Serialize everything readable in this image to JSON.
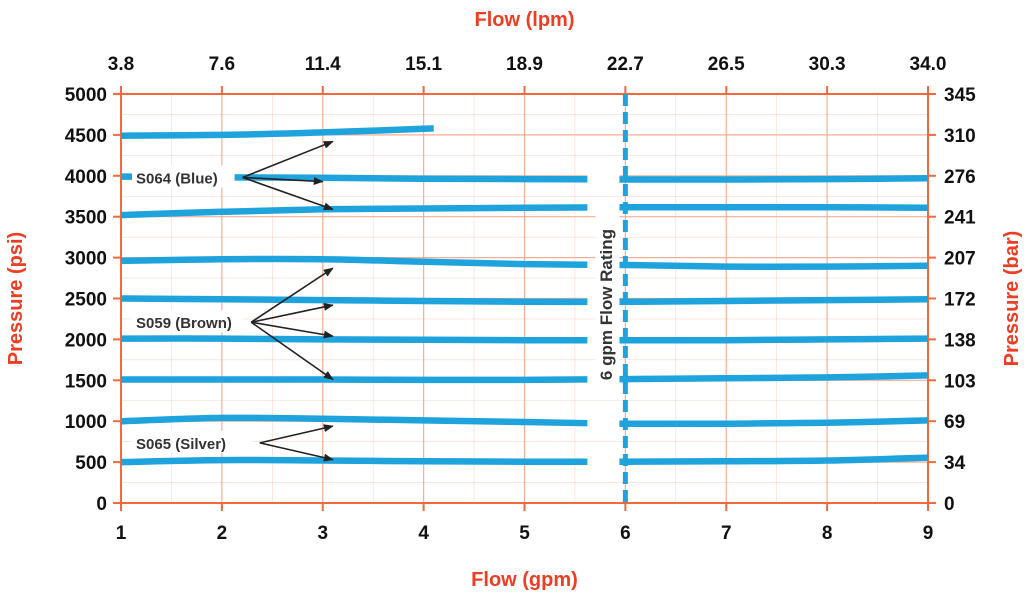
{
  "chart_data": {
    "type": "line",
    "xlabel": "Flow (gpm)",
    "x2label": "Flow (lpm)",
    "ylabel": "Pressure (psi)",
    "y2label": "Pressure (bar)",
    "xlim": [
      1,
      9
    ],
    "ylim": [
      0,
      5000
    ],
    "grid": true,
    "x_ticks": [
      "1",
      "2",
      "3",
      "4",
      "5",
      "6",
      "7",
      "8",
      "9"
    ],
    "x2_ticks": [
      "3.8",
      "7.6",
      "11.4",
      "15.1",
      "18.9",
      "22.7",
      "26.5",
      "30.3",
      "34.0"
    ],
    "y_ticks": [
      "0",
      "500",
      "1000",
      "1500",
      "2000",
      "2500",
      "3000",
      "3500",
      "4000",
      "4500",
      "5000"
    ],
    "y2_ticks": [
      "0",
      "34",
      "69",
      "103",
      "138",
      "172",
      "207",
      "241",
      "276",
      "310",
      "345"
    ],
    "y_tick_values": [
      0,
      500,
      1000,
      1500,
      2000,
      2500,
      3000,
      3500,
      4000,
      4500,
      5000
    ],
    "flow_rating": {
      "x": 6,
      "label": "6 gpm Flow Rating"
    },
    "series": [
      {
        "group": "S064 (Blue)",
        "points": [
          [
            1,
            4490
          ],
          [
            2,
            4500
          ],
          [
            3,
            4530
          ],
          [
            4.1,
            4580
          ]
        ]
      },
      {
        "group": "S064 (Blue)",
        "points": [
          [
            1,
            3990
          ],
          [
            2,
            3980
          ],
          [
            3,
            3975
          ],
          [
            4,
            3965
          ],
          [
            5,
            3960
          ],
          [
            6,
            3955
          ],
          [
            7,
            3955
          ],
          [
            8,
            3960
          ],
          [
            9,
            3970
          ]
        ]
      },
      {
        "group": "S064 (Blue)",
        "points": [
          [
            1,
            3520
          ],
          [
            2,
            3560
          ],
          [
            3,
            3590
          ],
          [
            4,
            3600
          ],
          [
            5,
            3610
          ],
          [
            6,
            3615
          ],
          [
            7,
            3615
          ],
          [
            8,
            3615
          ],
          [
            9,
            3610
          ]
        ]
      },
      {
        "group": "S059 (Brown)",
        "points": [
          [
            1,
            2960
          ],
          [
            2,
            2980
          ],
          [
            3,
            2980
          ],
          [
            4,
            2950
          ],
          [
            5,
            2920
          ],
          [
            6,
            2910
          ],
          [
            7,
            2890
          ],
          [
            8,
            2890
          ],
          [
            9,
            2900
          ]
        ]
      },
      {
        "group": "S059 (Brown)",
        "points": [
          [
            1,
            2500
          ],
          [
            2,
            2490
          ],
          [
            3,
            2480
          ],
          [
            4,
            2470
          ],
          [
            5,
            2460
          ],
          [
            6,
            2460
          ],
          [
            7,
            2470
          ],
          [
            8,
            2480
          ],
          [
            9,
            2490
          ]
        ]
      },
      {
        "group": "S059 (Brown)",
        "points": [
          [
            1,
            2010
          ],
          [
            2,
            2010
          ],
          [
            3,
            2000
          ],
          [
            4,
            1995
          ],
          [
            5,
            1990
          ],
          [
            6,
            1990
          ],
          [
            7,
            1990
          ],
          [
            8,
            2000
          ],
          [
            9,
            2010
          ]
        ]
      },
      {
        "group": "S059 (Brown)",
        "points": [
          [
            1,
            1510
          ],
          [
            2,
            1510
          ],
          [
            3,
            1510
          ],
          [
            4,
            1505
          ],
          [
            5,
            1505
          ],
          [
            6,
            1515
          ],
          [
            7,
            1525
          ],
          [
            8,
            1535
          ],
          [
            9,
            1560
          ]
        ]
      },
      {
        "group": "S065 (Silver)",
        "points": [
          [
            1,
            1000
          ],
          [
            2,
            1040
          ],
          [
            3,
            1030
          ],
          [
            4,
            1010
          ],
          [
            5,
            990
          ],
          [
            6,
            970
          ],
          [
            7,
            970
          ],
          [
            8,
            980
          ],
          [
            9,
            1010
          ]
        ]
      },
      {
        "group": "S065 (Silver)",
        "points": [
          [
            1,
            500
          ],
          [
            2,
            525
          ],
          [
            3,
            520
          ],
          [
            4,
            510
          ],
          [
            5,
            505
          ],
          [
            6,
            505
          ],
          [
            7,
            510
          ],
          [
            8,
            520
          ],
          [
            9,
            555
          ]
        ]
      }
    ],
    "annotations": [
      {
        "label": "S064 (Blue)",
        "targets": [
          [
            3.1,
            4420
          ],
          [
            3.0,
            3930
          ],
          [
            3.1,
            3590
          ]
        ]
      },
      {
        "label": "S059 (Brown)",
        "targets": [
          [
            3.1,
            2870
          ],
          [
            3.1,
            2420
          ],
          [
            3.1,
            2040
          ],
          [
            3.1,
            1510
          ]
        ]
      },
      {
        "label": "S065 (Silver)",
        "targets": [
          [
            3.1,
            940
          ],
          [
            3.1,
            530
          ]
        ]
      }
    ],
    "colors": {
      "series": "#1ea3dc",
      "grid": "#f4a58a",
      "axis": "#f26a3c",
      "title": "#ee3d23",
      "text": "#111111"
    }
  }
}
